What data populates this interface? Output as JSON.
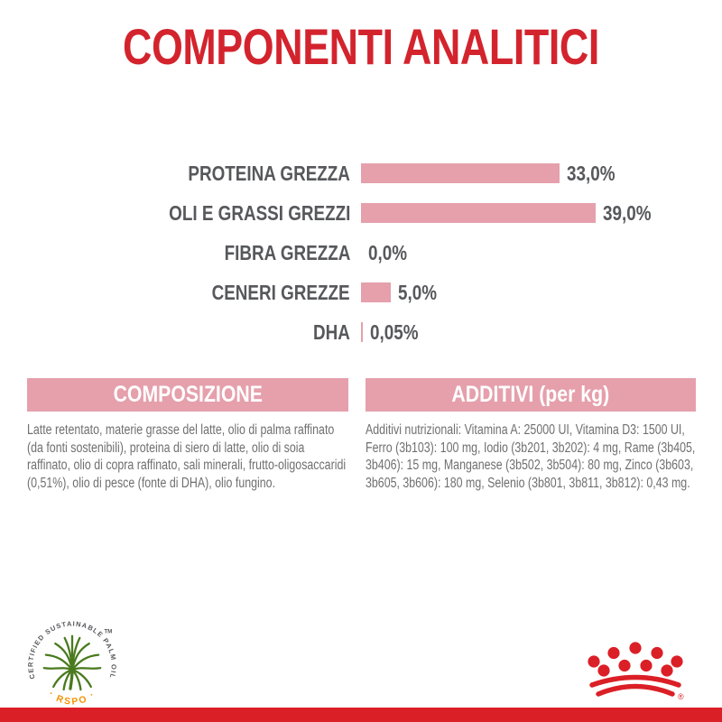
{
  "page": {
    "title": "COMPONENTI ANALITICI"
  },
  "chart_data": {
    "type": "bar",
    "orientation": "horizontal",
    "title": "COMPONENTI ANALITICI",
    "categories": [
      "PROTEINA GREZZA",
      "OLI E GRASSI GREZZI",
      "FIBRA GREZZA",
      "CENERI GREZZE",
      "DHA"
    ],
    "values": [
      33.0,
      39.0,
      0.0,
      5.0,
      0.05
    ],
    "value_labels": [
      "33,0%",
      "39,0%",
      "0,0%",
      "5,0%",
      "0,05%"
    ],
    "unit": "%",
    "xlim": [
      0,
      40
    ],
    "grid": false,
    "legend": false,
    "bar_color": "#E5A0AC",
    "label_color": "#57585C"
  },
  "sections": {
    "composizione": {
      "title": "COMPOSIZIONE",
      "body": "Latte retentato, materie grasse del latte, olio di palma raffinato (da fonti sostenibili), proteina di siero di latte, olio di soia raffinato, olio di copra raffinato, sali minerali, frutto-oligosaccaridi (0,51%), olio di pesce (fonte di DHA), olio fungino."
    },
    "additivi": {
      "title": "ADDITIVI (per kg)",
      "body": "Additivi nutrizionali: Vitamina A: 25000 UI, Vitamina D3: 1500 UI, Ferro (3b103): 100 mg, Iodio (3b201, 3b202): 4 mg, Rame (3b405, 3b406): 15 mg, Manganese (3b502, 3b504): 80 mg, Zinco (3b603, 3b605, 3b606): 180 mg, Selenio (3b801, 3b811, 3b812): 0,43 mg."
    }
  },
  "footer": {
    "rspo_badge": {
      "arc_text": "CERTIFIED SUSTAINABLE PALM OIL",
      "tm": "TM",
      "label": "· RSPO ·"
    },
    "brand_logo": "royal-canin-crown",
    "registered_mark": "®"
  },
  "colors": {
    "title_red": "#D3242E",
    "brand_red": "#DB1F26",
    "pink": "#E5A0AC",
    "label_gray": "#57585C",
    "body_gray": "#6F6F6F",
    "rspo_green": "#4A7A1E",
    "rspo_orange": "#F39200"
  }
}
